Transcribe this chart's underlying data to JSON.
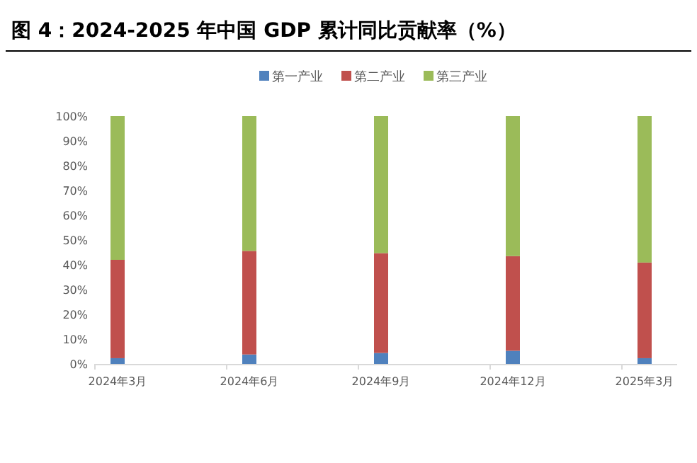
{
  "chart_data": {
    "type": "bar",
    "stacked": true,
    "title": "图 4：2024-2025 年中国 GDP 累计同比贡献率（%）",
    "categories": [
      "2024年3月",
      "2024年6月",
      "2024年9月",
      "2024年12月",
      "2025年3月"
    ],
    "series": [
      {
        "name": "第一产业",
        "color": "#4f81bd",
        "values": [
          2.3,
          3.8,
          4.4,
          5.3,
          2.3
        ]
      },
      {
        "name": "第二产业",
        "color": "#c0504d",
        "values": [
          39.7,
          41.8,
          40.3,
          38.2,
          38.6
        ]
      },
      {
        "name": "第三产业",
        "color": "#9bbb59",
        "values": [
          58.0,
          54.4,
          55.3,
          56.5,
          59.1
        ]
      }
    ],
    "ylim": [
      0,
      100
    ],
    "yticks": [
      {
        "value": 0,
        "label": "0%"
      },
      {
        "value": 10,
        "label": "10%"
      },
      {
        "value": 20,
        "label": "20%"
      },
      {
        "value": 30,
        "label": "30%"
      },
      {
        "value": 40,
        "label": "40%"
      },
      {
        "value": 50,
        "label": "50%"
      },
      {
        "value": 60,
        "label": "60%"
      },
      {
        "value": 70,
        "label": "70%"
      },
      {
        "value": 80,
        "label": "80%"
      },
      {
        "value": 90,
        "label": "90%"
      },
      {
        "value": 100,
        "label": "100%"
      }
    ],
    "legend": "top",
    "grid": false
  }
}
